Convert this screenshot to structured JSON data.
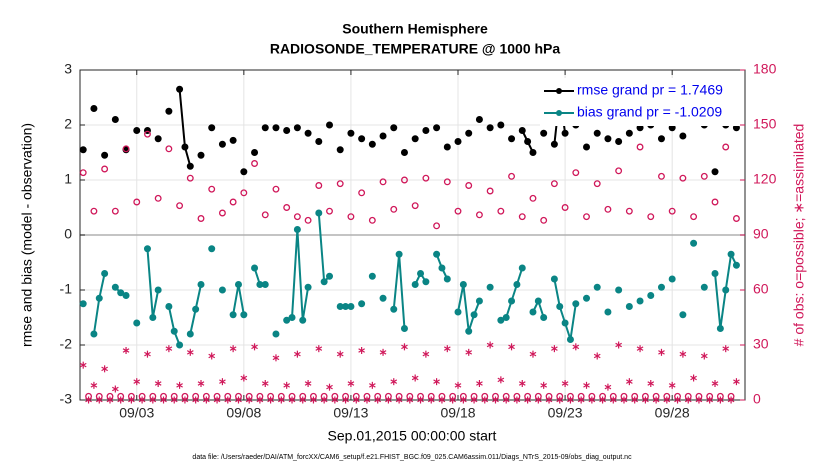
{
  "chart_data": {
    "type": "line",
    "title": "Southern Hemisphere",
    "subtitle": "RADIOSONDE_TEMPERATURE @ 1000 hPa",
    "xlabel": "Sep.01,2015 00:00:00 start",
    "ylabel": "rmse and bias (model - observation)",
    "y2label": "# of obs: o=possible; ∗=assimilated",
    "footnote": "data file: /Users/raeder/DAI/ATM_forcXX/CAM6_setup/f.e21.FHIST_BGC.f09_025.CAM6assim.011/Diags_NTrS_2015-09/obs_diag_output.nc",
    "xlim": [
      0.35,
      31.4
    ],
    "xticks": [
      {
        "value": 3,
        "label": "09/03"
      },
      {
        "value": 8,
        "label": "09/08"
      },
      {
        "value": 13,
        "label": "09/13"
      },
      {
        "value": 18,
        "label": "09/18"
      },
      {
        "value": 23,
        "label": "09/23"
      },
      {
        "value": 28,
        "label": "09/28"
      }
    ],
    "ylim": [
      -3,
      3
    ],
    "yticks": [
      -3,
      -2,
      -1,
      0,
      1,
      2,
      3
    ],
    "y2lim": [
      0,
      180
    ],
    "y2ticks": [
      0,
      30,
      60,
      90,
      120,
      150,
      180
    ],
    "grid": true,
    "legend": "upper right",
    "x": [
      0.5,
      0.75,
      1,
      1.25,
      1.5,
      1.75,
      2,
      2.25,
      2.5,
      2.75,
      3,
      3.25,
      3.5,
      3.75,
      4,
      4.25,
      4.5,
      4.75,
      5,
      5.25,
      5.5,
      5.75,
      6,
      6.25,
      6.5,
      6.75,
      7,
      7.25,
      7.5,
      7.75,
      8,
      8.25,
      8.5,
      8.75,
      9,
      9.25,
      9.5,
      9.75,
      10,
      10.25,
      10.5,
      10.75,
      11,
      11.25,
      11.5,
      11.75,
      12,
      12.25,
      12.5,
      12.75,
      13,
      13.25,
      13.5,
      13.75,
      14,
      14.25,
      14.5,
      14.75,
      15,
      15.25,
      15.5,
      15.75,
      16,
      16.25,
      16.5,
      16.75,
      17,
      17.25,
      17.5,
      17.75,
      18,
      18.25,
      18.5,
      18.75,
      19,
      19.25,
      19.5,
      19.75,
      20,
      20.25,
      20.5,
      20.75,
      21,
      21.25,
      21.5,
      21.75,
      22,
      22.25,
      22.5,
      22.75,
      23,
      23.25,
      23.5,
      23.75,
      24,
      24.25,
      24.5,
      24.75,
      25,
      25.25,
      25.5,
      25.75,
      26,
      26.25,
      26.5,
      26.75,
      27,
      27.25,
      27.5,
      27.75,
      28,
      28.25,
      28.5,
      28.75,
      29,
      29.25,
      29.5,
      29.75,
      30,
      30.25,
      30.5,
      30.75,
      31
    ],
    "series": [
      {
        "name": "rmse grand pr = 1.7469",
        "color": "#000000",
        "marker": "filled",
        "values": [
          1.55,
          null,
          2.3,
          null,
          1.45,
          null,
          2.1,
          null,
          1.55,
          null,
          1.9,
          null,
          1.9,
          null,
          1.75,
          null,
          2.25,
          null,
          2.65,
          1.6,
          1.25,
          null,
          1.45,
          null,
          1.95,
          null,
          1.65,
          null,
          1.72,
          null,
          1.15,
          null,
          1.5,
          null,
          1.95,
          null,
          1.95,
          null,
          1.9,
          null,
          1.95,
          null,
          1.85,
          null,
          1.7,
          null,
          2.0,
          null,
          1.55,
          null,
          1.85,
          null,
          1.75,
          null,
          1.65,
          null,
          1.8,
          null,
          1.95,
          null,
          1.5,
          null,
          1.75,
          null,
          1.9,
          null,
          1.95,
          null,
          1.6,
          null,
          1.7,
          null,
          1.85,
          null,
          2.1,
          null,
          1.95,
          null,
          2.0,
          null,
          1.75,
          null,
          1.9,
          1.7,
          1.5,
          null,
          1.85,
          null,
          1.65,
          2.55,
          1.85,
          null,
          2.0,
          null,
          1.6,
          null,
          1.85,
          null,
          1.75,
          null,
          1.7,
          null,
          1.85,
          null,
          1.95,
          null,
          2.0,
          null,
          1.75,
          null,
          1.95,
          null,
          1.8,
          null,
          2.05,
          null,
          2.0,
          null,
          1.15,
          null,
          2.0,
          null,
          1.95
        ]
      },
      {
        "name": "bias grand pr = -1.0209",
        "color": "#0a8585",
        "marker": "filled",
        "values": [
          -1.25,
          null,
          -1.8,
          -1.15,
          -0.7,
          null,
          -0.95,
          -1.05,
          -1.1,
          null,
          -1.6,
          null,
          -0.25,
          -1.5,
          -1.0,
          null,
          -1.3,
          -1.75,
          -2.0,
          null,
          -1.8,
          -1.35,
          -0.9,
          null,
          -0.25,
          null,
          -1.0,
          null,
          -1.45,
          -0.9,
          -1.45,
          null,
          -0.6,
          -0.9,
          -0.9,
          null,
          -1.8,
          null,
          -1.55,
          -1.5,
          0.1,
          -1.55,
          -0.95,
          null,
          0.4,
          -0.85,
          -0.75,
          null,
          -1.3,
          -1.3,
          -1.3,
          null,
          -1.25,
          null,
          -0.75,
          null,
          -1.15,
          null,
          -1.35,
          -0.35,
          -1.7,
          null,
          -0.9,
          -0.7,
          -0.85,
          null,
          -0.35,
          -0.6,
          -0.8,
          null,
          -1.4,
          -0.9,
          -1.75,
          -1.45,
          -1.2,
          null,
          -0.95,
          null,
          -1.55,
          -1.5,
          -1.2,
          -0.9,
          -0.6,
          null,
          -1.4,
          -1.2,
          -1.5,
          null,
          -0.8,
          -1.3,
          -1.6,
          -1.9,
          -1.25,
          null,
          -1.15,
          null,
          -0.95,
          null,
          -1.4,
          null,
          -1.0,
          null,
          -1.3,
          null,
          -1.2,
          null,
          -1.1,
          null,
          -0.95,
          null,
          -0.8,
          null,
          -1.45,
          null,
          -0.15,
          null,
          -0.95,
          null,
          -0.7,
          -1.7,
          -1.0,
          -0.35,
          -0.55
        ]
      },
      {
        "color": "#d0185a",
        "marker": "open",
        "axis": "y2",
        "values": [
          124,
          2,
          103,
          2,
          126,
          2,
          103,
          2,
          137,
          2,
          108,
          2,
          145,
          2,
          110,
          2,
          137,
          2,
          106,
          2,
          121,
          2,
          99,
          2,
          115,
          2,
          102,
          2,
          108,
          2,
          113,
          2,
          129,
          2,
          101,
          2,
          115,
          2,
          105,
          2,
          100,
          2,
          98,
          2,
          117,
          2,
          103,
          2,
          118,
          2,
          100,
          2,
          113,
          2,
          98,
          2,
          119,
          2,
          104,
          2,
          120,
          2,
          106,
          2,
          121,
          2,
          95,
          2,
          119,
          2,
          103,
          2,
          117,
          2,
          101,
          2,
          114,
          2,
          103,
          2,
          122,
          2,
          100,
          2,
          110,
          2,
          98,
          2,
          118,
          2,
          105,
          2,
          124,
          2,
          100,
          2,
          118,
          2,
          104,
          2,
          125,
          2,
          103,
          2,
          138,
          2,
          100,
          2,
          122,
          2,
          103,
          2,
          121,
          2,
          100,
          2,
          122,
          2,
          108,
          2,
          138,
          2,
          99
        ]
      },
      {
        "color": "#d0185a",
        "marker": "asterisk",
        "axis": "y2",
        "values": [
          19,
          0,
          8,
          0,
          17,
          0,
          6,
          0,
          27,
          0,
          10,
          0,
          25,
          0,
          9,
          0,
          28,
          0,
          8,
          0,
          26,
          0,
          9,
          0,
          24,
          0,
          10,
          0,
          28,
          0,
          12,
          0,
          29,
          0,
          9,
          0,
          23,
          0,
          8,
          0,
          25,
          0,
          9,
          0,
          28,
          0,
          7,
          0,
          25,
          0,
          9,
          0,
          27,
          0,
          8,
          0,
          26,
          0,
          10,
          0,
          29,
          0,
          12,
          0,
          25,
          0,
          10,
          0,
          28,
          0,
          8,
          0,
          26,
          0,
          9,
          0,
          30,
          0,
          11,
          0,
          29,
          0,
          9,
          0,
          25,
          0,
          8,
          0,
          28,
          0,
          9,
          0,
          29,
          0,
          8,
          0,
          24,
          0,
          7,
          0,
          30,
          0,
          10,
          0,
          28,
          0,
          9,
          0,
          26,
          0,
          8,
          0,
          25,
          0,
          12,
          0,
          24,
          0,
          9,
          0,
          28,
          0,
          10
        ]
      }
    ]
  }
}
